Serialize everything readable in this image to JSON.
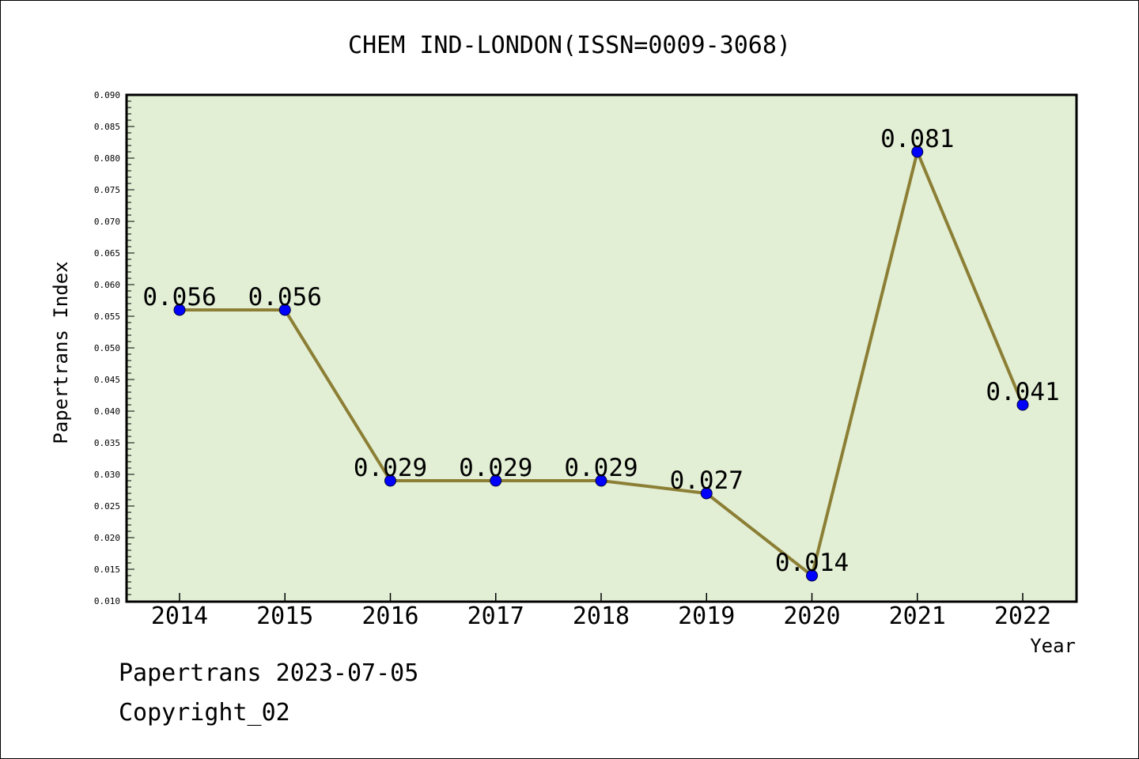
{
  "chart_data": {
    "type": "line",
    "title": "CHEM IND-LONDON(ISSN=0009-3068)",
    "xlabel": "Year",
    "ylabel": "Papertrans Index",
    "x": [
      "2014",
      "2015",
      "2016",
      "2017",
      "2018",
      "2019",
      "2020",
      "2021",
      "2022"
    ],
    "series": [
      {
        "values": [
          0.056,
          0.056,
          0.029,
          0.029,
          0.029,
          0.027,
          0.014,
          0.081,
          0.041
        ],
        "data_labels": [
          "0.056",
          "0.056",
          "0.029",
          "0.029",
          "0.029",
          "0.027",
          "0.014",
          "0.081",
          "0.041"
        ]
      }
    ],
    "ylim": [
      0.01,
      0.09
    ],
    "y_ticks": [
      "0.010",
      "0.015",
      "0.020",
      "0.025",
      "0.030",
      "0.035",
      "0.040",
      "0.045",
      "0.050",
      "0.055",
      "0.060",
      "0.065",
      "0.070",
      "0.075",
      "0.080",
      "0.085",
      "0.090"
    ],
    "grid": false,
    "legend": "none",
    "colors": {
      "plot_background": "#e2efd5",
      "line": "#8c7f35",
      "marker": "#0000ff",
      "axis": "#000000"
    }
  },
  "footer": {
    "line1": "Papertrans 2023-07-05",
    "line2": "Copyright_02"
  }
}
